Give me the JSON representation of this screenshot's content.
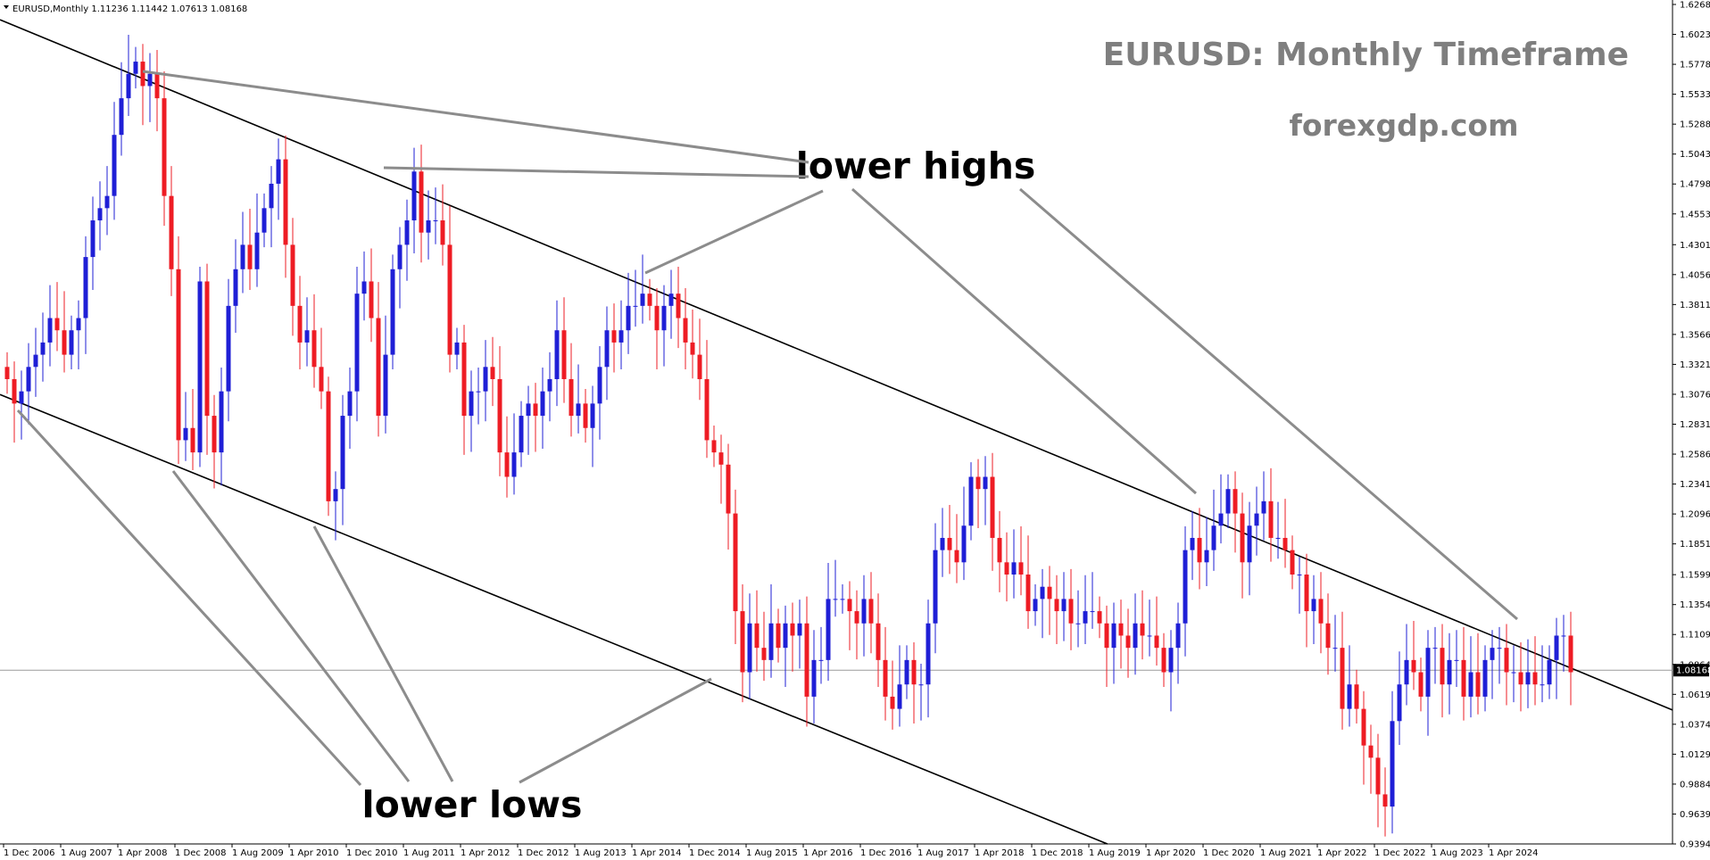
{
  "chart_data": {
    "type": "candlestick",
    "symbol_header": "EURUSD,Monthly  1.11236 1.11442 1.07613 1.08168",
    "title": "EURUSD: Monthly Timeframe",
    "subtitle": "forexgdp.com",
    "current_price": 1.08168,
    "current_price_label": "1.08168",
    "y_range": [
      0.9394,
      1.6268
    ],
    "y_ticks": [
      "1.62680",
      "1.60230",
      "1.57780",
      "1.55330",
      "1.52880",
      "1.50430",
      "1.47980",
      "1.45530",
      "1.43010",
      "1.40560",
      "1.38110",
      "1.35660",
      "1.33210",
      "1.30760",
      "1.28310",
      "1.25860",
      "1.23410",
      "1.20960",
      "1.18510",
      "1.15990",
      "1.13540",
      "1.11090",
      "1.08640",
      "1.06190",
      "1.03740",
      "1.01290",
      "0.98840",
      "0.96390",
      "0.93940"
    ],
    "x_ticks": [
      "1 Dec 2006",
      "1 Aug 2007",
      "1 Apr 2008",
      "1 Dec 2008",
      "1 Aug 2009",
      "1 Apr 2010",
      "1 Dec 2010",
      "1 Aug 2011",
      "1 Apr 2012",
      "1 Dec 2012",
      "1 Aug 2013",
      "1 Apr 2014",
      "1 Dec 2014",
      "1 Aug 2015",
      "1 Apr 2016",
      "1 Dec 2016",
      "1 Aug 2017",
      "1 Apr 2018",
      "1 Dec 2018",
      "1 Aug 2019",
      "1 Apr 2020",
      "1 Dec 2020",
      "1 Aug 2021",
      "1 Apr 2022",
      "1 Dec 2022",
      "1 Aug 2023",
      "1 Apr 2024"
    ],
    "start_month": "2006-11",
    "closes": [
      1.32,
      1.3,
      1.31,
      1.33,
      1.34,
      1.35,
      1.37,
      1.36,
      1.34,
      1.36,
      1.37,
      1.42,
      1.45,
      1.46,
      1.47,
      1.52,
      1.55,
      1.57,
      1.58,
      1.56,
      1.57,
      1.55,
      1.47,
      1.41,
      1.27,
      1.28,
      1.26,
      1.4,
      1.29,
      1.26,
      1.31,
      1.38,
      1.41,
      1.43,
      1.41,
      1.44,
      1.46,
      1.48,
      1.5,
      1.43,
      1.38,
      1.35,
      1.36,
      1.33,
      1.31,
      1.22,
      1.23,
      1.29,
      1.31,
      1.39,
      1.4,
      1.37,
      1.29,
      1.34,
      1.41,
      1.43,
      1.45,
      1.49,
      1.44,
      1.45,
      1.45,
      1.43,
      1.34,
      1.35,
      1.29,
      1.31,
      1.31,
      1.33,
      1.32,
      1.26,
      1.24,
      1.26,
      1.29,
      1.3,
      1.29,
      1.31,
      1.32,
      1.36,
      1.32,
      1.29,
      1.3,
      1.28,
      1.3,
      1.33,
      1.36,
      1.35,
      1.36,
      1.38,
      1.38,
      1.39,
      1.38,
      1.36,
      1.38,
      1.39,
      1.37,
      1.35,
      1.34,
      1.32,
      1.27,
      1.26,
      1.25,
      1.21,
      1.13,
      1.08,
      1.12,
      1.1,
      1.09,
      1.12,
      1.1,
      1.12,
      1.11,
      1.12,
      1.06,
      1.09,
      1.09,
      1.14,
      1.14,
      1.14,
      1.13,
      1.12,
      1.14,
      1.12,
      1.09,
      1.06,
      1.05,
      1.07,
      1.09,
      1.07,
      1.07,
      1.12,
      1.18,
      1.19,
      1.18,
      1.17,
      1.2,
      1.24,
      1.23,
      1.24,
      1.19,
      1.17,
      1.16,
      1.17,
      1.16,
      1.13,
      1.14,
      1.15,
      1.14,
      1.13,
      1.14,
      1.12,
      1.12,
      1.13,
      1.13,
      1.12,
      1.1,
      1.12,
      1.11,
      1.1,
      1.12,
      1.11,
      1.11,
      1.1,
      1.08,
      1.1,
      1.12,
      1.18,
      1.19,
      1.17,
      1.18,
      1.2,
      1.21,
      1.23,
      1.21,
      1.17,
      1.2,
      1.21,
      1.22,
      1.19,
      1.19,
      1.18,
      1.16,
      1.16,
      1.13,
      1.14,
      1.12,
      1.1,
      1.1,
      1.05,
      1.07,
      1.05,
      1.02,
      1.01,
      0.98,
      0.97,
      1.04,
      1.07,
      1.09,
      1.08,
      1.06,
      1.1,
      1.1,
      1.07,
      1.09,
      1.09,
      1.06,
      1.08,
      1.06,
      1.09,
      1.1,
      1.1,
      1.08,
      1.08,
      1.07,
      1.08,
      1.07,
      1.07,
      1.09,
      1.11,
      1.11,
      1.08
    ],
    "trendlines": [
      {
        "name": "upper",
        "points": [
          [
            "2007-06",
            1.595
          ],
          [
            "2024-09",
            1.0955
          ]
        ]
      },
      {
        "name": "lower",
        "points": [
          [
            "2006-11",
            1.305
          ],
          [
            "2015-01",
            1.0725
          ]
        ]
      }
    ],
    "annotations": [
      "lower highs",
      "lower lows"
    ]
  }
}
